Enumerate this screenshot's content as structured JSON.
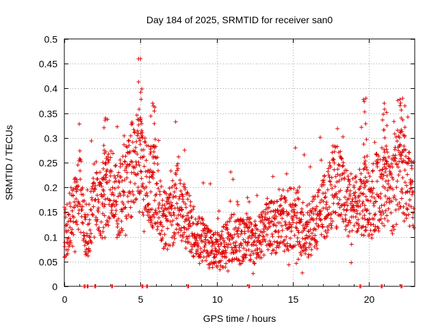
{
  "chart_data": {
    "type": "scatter",
    "title": "Day 184 of 2025, SRMTID for receiver san0",
    "xlabel": "GPS time / hours",
    "ylabel": "SRMTID / TECUs",
    "xlim": [
      0,
      23
    ],
    "ylim": [
      0,
      0.5
    ],
    "xticks": [
      0,
      5,
      10,
      15,
      20
    ],
    "xtick_labels": [
      "0",
      "5",
      "10",
      "15",
      "20"
    ],
    "yticks": [
      0,
      0.05,
      0.1,
      0.15,
      0.2,
      0.25,
      0.3,
      0.35,
      0.4,
      0.45,
      0.5
    ],
    "ytick_labels": [
      "0",
      "0.05",
      "0.1",
      "0.15",
      "0.2",
      "0.25",
      "0.3",
      "0.35",
      "0.4",
      "0.45",
      "0.5"
    ],
    "grid": true,
    "marker": "+",
    "color": "#e00000",
    "series": [
      {
        "name": "SRMTID",
        "approximate": true,
        "trend": [
          {
            "x": 0.0,
            "y": 0.11
          },
          {
            "x": 0.5,
            "y": 0.14
          },
          {
            "x": 1.0,
            "y": 0.2
          },
          {
            "x": 1.5,
            "y": 0.1
          },
          {
            "x": 2.0,
            "y": 0.17
          },
          {
            "x": 2.5,
            "y": 0.16
          },
          {
            "x": 3.0,
            "y": 0.2
          },
          {
            "x": 3.5,
            "y": 0.17
          },
          {
            "x": 4.0,
            "y": 0.2
          },
          {
            "x": 4.5,
            "y": 0.24
          },
          {
            "x": 5.0,
            "y": 0.25
          },
          {
            "x": 5.5,
            "y": 0.2
          },
          {
            "x": 6.0,
            "y": 0.2
          },
          {
            "x": 6.5,
            "y": 0.13
          },
          {
            "x": 7.0,
            "y": 0.14
          },
          {
            "x": 7.5,
            "y": 0.18
          },
          {
            "x": 8.0,
            "y": 0.14
          },
          {
            "x": 8.5,
            "y": 0.11
          },
          {
            "x": 9.0,
            "y": 0.1
          },
          {
            "x": 9.5,
            "y": 0.08
          },
          {
            "x": 10.0,
            "y": 0.07
          },
          {
            "x": 10.5,
            "y": 0.08
          },
          {
            "x": 11.0,
            "y": 0.1
          },
          {
            "x": 11.5,
            "y": 0.09
          },
          {
            "x": 12.0,
            "y": 0.1
          },
          {
            "x": 12.5,
            "y": 0.09
          },
          {
            "x": 13.0,
            "y": 0.11
          },
          {
            "x": 13.5,
            "y": 0.12
          },
          {
            "x": 14.0,
            "y": 0.12
          },
          {
            "x": 14.5,
            "y": 0.13
          },
          {
            "x": 15.0,
            "y": 0.14
          },
          {
            "x": 15.5,
            "y": 0.12
          },
          {
            "x": 16.0,
            "y": 0.11
          },
          {
            "x": 16.5,
            "y": 0.13
          },
          {
            "x": 17.0,
            "y": 0.16
          },
          {
            "x": 17.5,
            "y": 0.2
          },
          {
            "x": 18.0,
            "y": 0.2
          },
          {
            "x": 18.5,
            "y": 0.18
          },
          {
            "x": 19.0,
            "y": 0.15
          },
          {
            "x": 19.5,
            "y": 0.17
          },
          {
            "x": 20.0,
            "y": 0.16
          },
          {
            "x": 20.5,
            "y": 0.19
          },
          {
            "x": 21.0,
            "y": 0.2
          },
          {
            "x": 21.5,
            "y": 0.18
          },
          {
            "x": 22.0,
            "y": 0.24
          },
          {
            "x": 22.5,
            "y": 0.21
          },
          {
            "x": 23.0,
            "y": 0.2
          }
        ],
        "peaks": [
          {
            "x": 5.0,
            "y": 0.46
          },
          {
            "x": 5.8,
            "y": 0.37
          },
          {
            "x": 2.7,
            "y": 0.34
          },
          {
            "x": 19.8,
            "y": 0.38
          },
          {
            "x": 21.0,
            "y": 0.37
          },
          {
            "x": 22.2,
            "y": 0.38
          }
        ],
        "zero_points": [
          1.3,
          1.5,
          2.0,
          3.1,
          5.1,
          5.4,
          8.1,
          12.1,
          19.4,
          20.8,
          22.1
        ]
      }
    ]
  }
}
